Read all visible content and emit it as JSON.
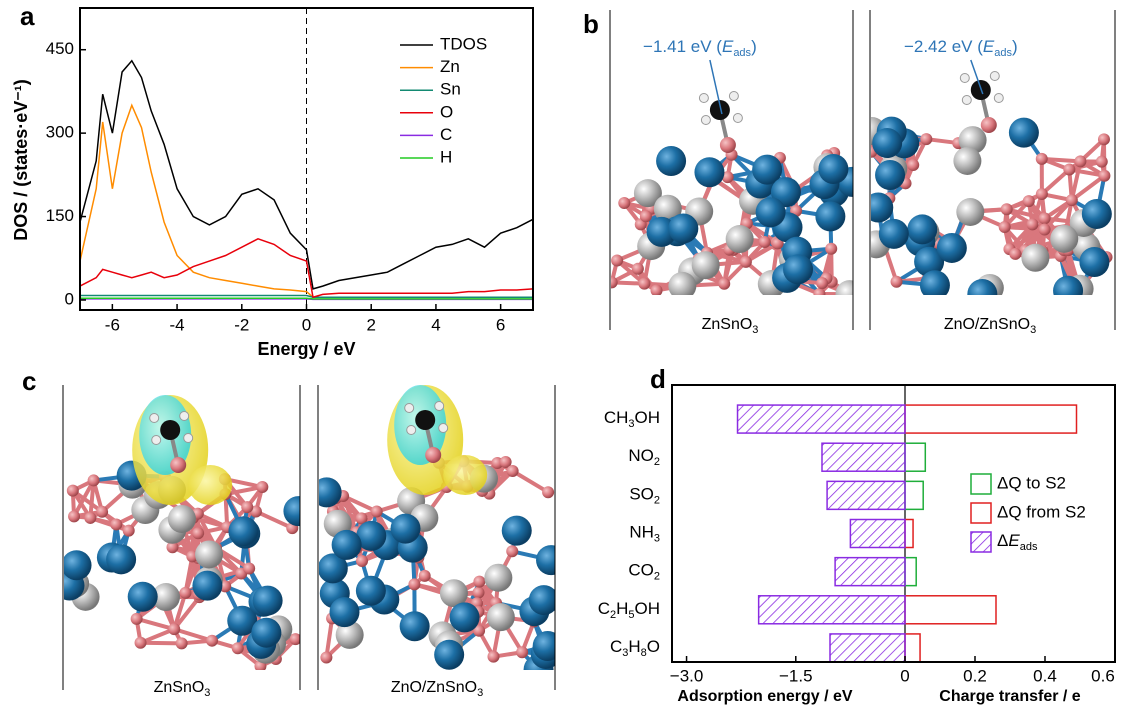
{
  "panel_labels": [
    "a",
    "b",
    "c",
    "d"
  ],
  "structures_b": [
    {
      "label": "ZnSnO3",
      "annotation": "−1.41 eV (Eads)"
    },
    {
      "label": "ZnO/ZnSnO3",
      "annotation": "−2.42 eV (Eads)"
    }
  ],
  "structures_c": [
    {
      "label": "ZnSnO3"
    },
    {
      "label": "ZnO/ZnSnO3"
    }
  ],
  "chart_data": [
    {
      "type": "line",
      "x_label": "Energy / eV",
      "y_label": "DOS / (states·eV⁻¹)",
      "xlim": [
        -7,
        7
      ],
      "ylim": [
        -18,
        525
      ],
      "xticks": [
        -6,
        -4,
        -2,
        0,
        2,
        4,
        6
      ],
      "yticks": [
        0,
        150,
        300,
        450
      ],
      "vline": 0,
      "grid": false,
      "legend": "upper right",
      "x": [
        -7,
        -6.5,
        -6.3,
        -6,
        -5.7,
        -5.4,
        -5.1,
        -4.8,
        -4.4,
        -4,
        -3.5,
        -3,
        -2.5,
        -2,
        -1.5,
        -1,
        -0.5,
        0,
        0.2,
        0.5,
        1,
        1.5,
        2,
        2.5,
        3,
        3.5,
        4,
        4.5,
        5,
        5.5,
        6,
        6.5,
        7
      ],
      "series": [
        {
          "name": "TDOS",
          "color": "#000000",
          "values": [
            140,
            250,
            370,
            300,
            410,
            430,
            400,
            340,
            280,
            200,
            150,
            135,
            150,
            190,
            200,
            180,
            120,
            90,
            20,
            25,
            35,
            40,
            45,
            50,
            65,
            80,
            95,
            100,
            110,
            95,
            120,
            130,
            145
          ]
        },
        {
          "name": "Zn",
          "color": "#ff8c00",
          "values": [
            70,
            200,
            320,
            200,
            300,
            350,
            310,
            230,
            140,
            80,
            50,
            40,
            35,
            30,
            25,
            20,
            18,
            15,
            5,
            5,
            5,
            5,
            5,
            5,
            5,
            5,
            5,
            5,
            5,
            5,
            5,
            5,
            5
          ]
        },
        {
          "name": "Sn",
          "color": "#138a72",
          "values": [
            8,
            8,
            8,
            8,
            8,
            8,
            8,
            8,
            8,
            8,
            8,
            8,
            8,
            8,
            8,
            8,
            8,
            8,
            5,
            5,
            5,
            5,
            5,
            5,
            5,
            5,
            5,
            5,
            5,
            5,
            5,
            5,
            5
          ]
        },
        {
          "name": "O",
          "color": "#e8000b",
          "values": [
            25,
            40,
            55,
            50,
            45,
            40,
            45,
            50,
            40,
            45,
            60,
            70,
            80,
            95,
            110,
            100,
            80,
            70,
            5,
            10,
            12,
            12,
            12,
            12,
            12,
            12,
            12,
            12,
            15,
            15,
            18,
            18,
            20
          ]
        },
        {
          "name": "C",
          "color": "#8a2be2",
          "values": [
            2,
            2,
            2,
            2,
            2,
            2,
            2,
            2,
            2,
            2,
            2,
            2,
            2,
            2,
            2,
            2,
            2,
            2,
            1,
            1,
            1,
            1,
            1,
            1,
            1,
            1,
            1,
            1,
            1,
            1,
            1,
            1,
            1
          ]
        },
        {
          "name": "H",
          "color": "#22cc22",
          "values": [
            3,
            3,
            3,
            3,
            3,
            3,
            3,
            3,
            3,
            3,
            3,
            3,
            3,
            3,
            3,
            3,
            3,
            3,
            2,
            2,
            2,
            2,
            2,
            2,
            2,
            2,
            2,
            2,
            2,
            2,
            2,
            2,
            2
          ]
        }
      ]
    },
    {
      "type": "hbar",
      "x_label": "Adsorption energy / eV",
      "x2_label": "Charge transfer / e",
      "categories": [
        "CH3OH",
        "NO2",
        "SO2",
        "NH3",
        "CO2",
        "C2H5OH",
        "C3H8O"
      ],
      "xlim": [
        -3.2,
        0
      ],
      "xticks": [
        {
          "value": -3,
          "label": "−3.0"
        },
        {
          "value": -1.5,
          "label": "−1.5"
        },
        0
      ],
      "x2lim": [
        0,
        0.6
      ],
      "x2ticks": [
        0.2,
        0.4,
        0.6
      ],
      "grid": false,
      "legend": "right",
      "series": [
        {
          "name": "ΔQ to S2",
          "color": "#1fae3a",
          "axis": "x2",
          "values": [
            null,
            0.058,
            0.052,
            null,
            0.032,
            null,
            null
          ]
        },
        {
          "name": "ΔQ from S2",
          "color": "#e02020",
          "axis": "x2",
          "values": [
            0.49,
            null,
            null,
            0.023,
            null,
            0.26,
            0.043
          ]
        },
        {
          "name": "ΔEads",
          "color": "#8a2be2",
          "hatch": true,
          "values": [
            -2.3,
            -1.14,
            -1.07,
            -0.75,
            -0.96,
            -2.01,
            -1.03
          ]
        }
      ]
    }
  ]
}
